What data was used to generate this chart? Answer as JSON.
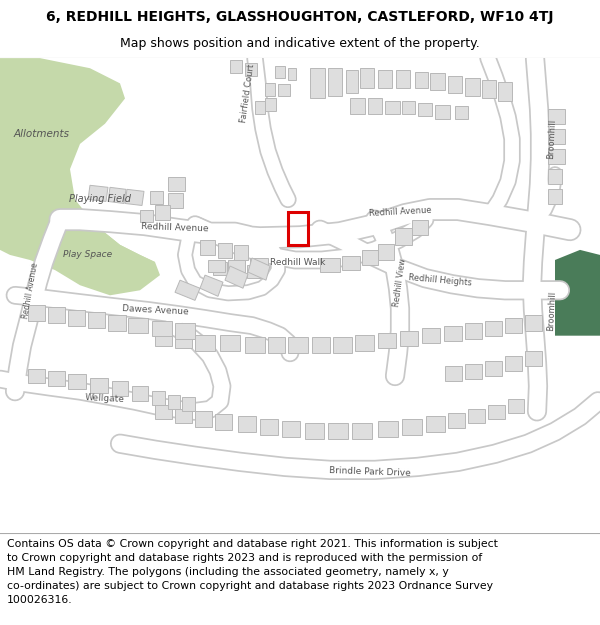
{
  "title_line1": "6, REDHILL HEIGHTS, GLASSHOUGHTON, CASTLEFORD, WF10 4TJ",
  "title_line2": "Map shows position and indicative extent of the property.",
  "title_fontsize": 10.0,
  "subtitle_fontsize": 9.0,
  "footer_text_lines": [
    "Contains OS data © Crown copyright and database right 2021. This information is subject to Crown copyright and database rights 2023 and is reproduced with the permission of",
    "HM Land Registry. The polygons (including the associated geometry, namely x, y co-ordinates) are subject to Crown copyright and database rights 2023 Ordnance Survey",
    "100026316."
  ],
  "footer_fontsize": 7.8,
  "map_bg": "#f7f6f4",
  "road_fill": "#ffffff",
  "road_edge": "#c8c8c8",
  "bld_fill": "#dedede",
  "bld_edge": "#b8b8b8",
  "green1": "#c5d9aa",
  "green2": "#4a7c59",
  "txt": "#555555",
  "red": "#dd0000",
  "title_bg": "#ffffff",
  "footer_bg": "#ffffff",
  "border_color": "#aaaaaa"
}
